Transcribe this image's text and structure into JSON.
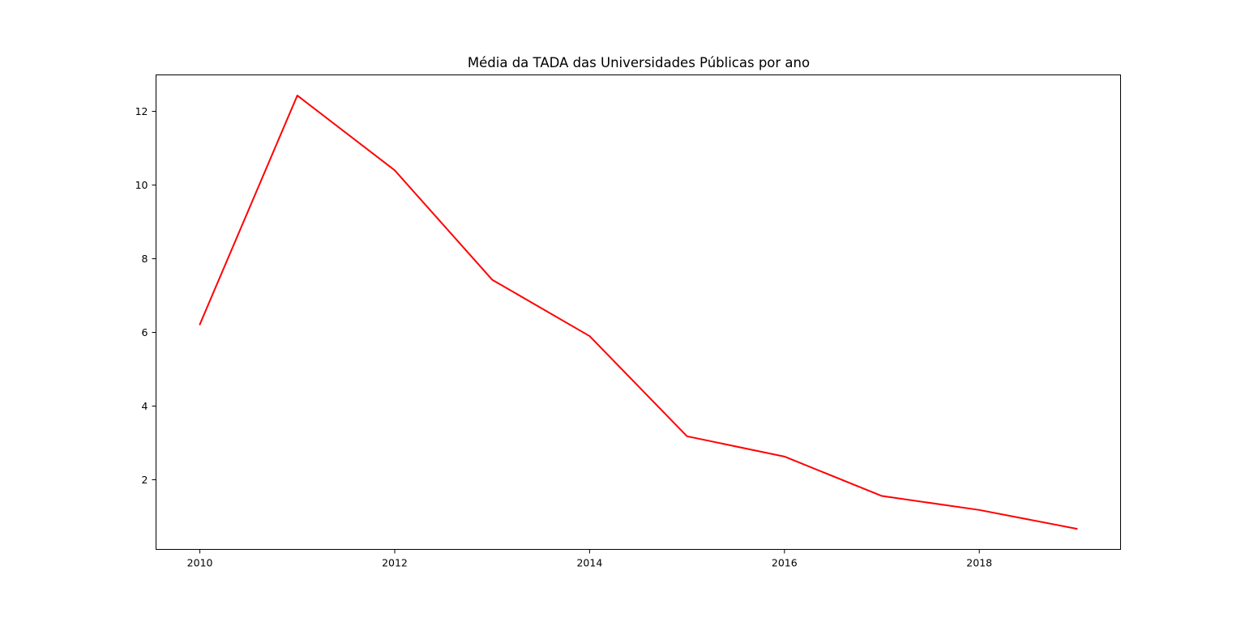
{
  "chart_data": {
    "type": "line",
    "title": "Média da TADA das Universidades Públicas por ano",
    "xlabel": "",
    "ylabel": "",
    "x": [
      2010,
      2011,
      2012,
      2013,
      2014,
      2015,
      2016,
      2017,
      2018,
      2019
    ],
    "series": [
      {
        "values": [
          6.22,
          12.43,
          10.4,
          7.43,
          5.9,
          3.18,
          2.63,
          1.56,
          1.18,
          0.67
        ],
        "color": "#ff0000"
      }
    ],
    "xlim": [
      2009.55,
      2019.45
    ],
    "ylim": [
      0.11,
      12.99
    ],
    "xticks": [
      2010,
      2012,
      2014,
      2016,
      2018
    ],
    "yticks": [
      2,
      4,
      6,
      8,
      10,
      12
    ],
    "grid": false,
    "legend": "none"
  }
}
